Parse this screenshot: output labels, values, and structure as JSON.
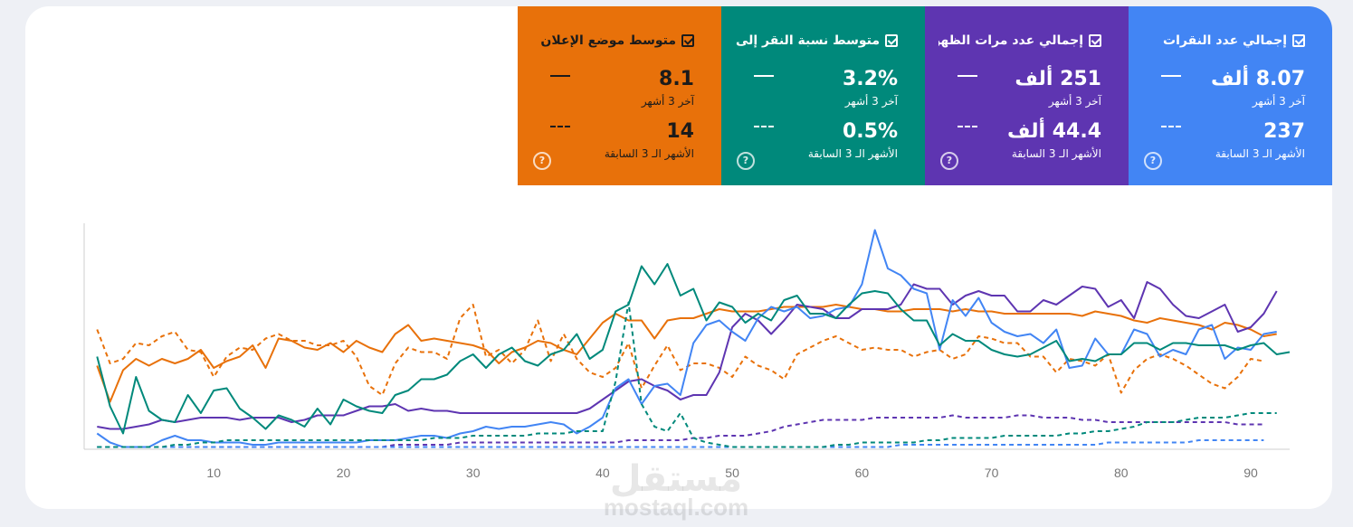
{
  "metrics": [
    {
      "label": "إجمالي عدد النقرات",
      "value": "8.07 ألف",
      "period": "آخر 3 أشهر",
      "prev_value": "237",
      "prev_period": "الأشهر الـ 3 السابقة",
      "color": "#4285f4",
      "dark_text": false
    },
    {
      "label": "إجمالي عدد مرات الظهو...",
      "value": "251 ألف",
      "period": "آخر 3 أشهر",
      "prev_value": "44.4 ألف",
      "prev_period": "الأشهر الـ 3 السابقة",
      "color": "#5e35b1",
      "dark_text": false
    },
    {
      "label": "متوسط نسبة النقر إلى الـ...",
      "value": "3.2%",
      "period": "آخر 3 أشهر",
      "prev_value": "0.5%",
      "prev_period": "الأشهر الـ 3 السابقة",
      "color": "#00897b",
      "dark_text": false
    },
    {
      "label": "متوسط موضع الإعلان",
      "value": "8.1",
      "period": "آخر 3 أشهر",
      "prev_value": "14",
      "prev_period": "الأشهر الـ 3 السابقة",
      "color": "#e8710a",
      "dark_text": true
    }
  ],
  "help_glyph": "?",
  "watermark": {
    "arabic": "مستقل",
    "latin": "mostaql.com"
  },
  "chart_data": {
    "type": "line",
    "xlim": [
      0,
      93
    ],
    "ylim": [
      0,
      100
    ],
    "xticks": [
      10,
      20,
      30,
      40,
      50,
      60,
      70,
      80,
      90
    ],
    "grid": false,
    "series": [
      {
        "color": "#e8710a",
        "style": "solid",
        "values": [
          37,
          21,
          35,
          40,
          37,
          40,
          38,
          40,
          44,
          36,
          39,
          41,
          46,
          36,
          49,
          48,
          45,
          44,
          47,
          43,
          48,
          45,
          43,
          51,
          55,
          48,
          49,
          48,
          47,
          46,
          44,
          38,
          43,
          45,
          48,
          47,
          44,
          42,
          49,
          56,
          60,
          57,
          57,
          49,
          57,
          58,
          58,
          60,
          62,
          61,
          61,
          61,
          62,
          63,
          63,
          63,
          63,
          64,
          63,
          62,
          62,
          61,
          61,
          62,
          62,
          62,
          61,
          62,
          61,
          61,
          60,
          60,
          60,
          60,
          60,
          60,
          59,
          61,
          60,
          59,
          57,
          56,
          58,
          57,
          56,
          55,
          53,
          56,
          55,
          53,
          50,
          51
        ]
      },
      {
        "color": "#e8710a",
        "style": "dashed",
        "values": [
          53,
          38,
          40,
          47,
          46,
          50,
          52,
          44,
          43,
          32,
          41,
          45,
          44,
          49,
          51,
          48,
          48,
          46,
          46,
          48,
          41,
          28,
          24,
          38,
          45,
          43,
          43,
          40,
          58,
          64,
          41,
          44,
          38,
          44,
          57,
          39,
          51,
          40,
          34,
          32,
          36,
          47,
          27,
          37,
          46,
          35,
          38,
          38,
          36,
          32,
          41,
          37,
          35,
          31,
          42,
          45,
          48,
          50,
          47,
          44,
          45,
          44,
          44,
          41,
          43,
          44,
          40,
          42,
          50,
          49,
          47,
          47,
          41,
          41,
          34,
          40,
          39,
          37,
          42,
          25,
          35,
          40,
          42,
          40,
          37,
          33,
          29,
          27,
          32,
          40,
          39
        ]
      },
      {
        "color": "#5e35b1",
        "style": "solid",
        "values": [
          10,
          9,
          9,
          10,
          11,
          13,
          12,
          13,
          14,
          14,
          14,
          13,
          14,
          14,
          14,
          12,
          13,
          15,
          15,
          15,
          17,
          19,
          19,
          20,
          17,
          18,
          17,
          17,
          16,
          16,
          16,
          16,
          16,
          16,
          16,
          16,
          16,
          16,
          18,
          22,
          26,
          30,
          31,
          28,
          26,
          22,
          24,
          24,
          34,
          54,
          60,
          57,
          51,
          57,
          64,
          63,
          62,
          58,
          58,
          62,
          62,
          62,
          64,
          73,
          71,
          71,
          64,
          68,
          70,
          68,
          68,
          61,
          61,
          66,
          64,
          68,
          72,
          71,
          63,
          66,
          58,
          74,
          71,
          64,
          59,
          58,
          61,
          64,
          52,
          54,
          60,
          70
        ]
      },
      {
        "color": "#5e35b1",
        "style": "dashed",
        "values": [
          1,
          1,
          1,
          1,
          1,
          1,
          1,
          1,
          1,
          1,
          1,
          1,
          1,
          1,
          1,
          1,
          1,
          1,
          1,
          1,
          1,
          1,
          1,
          2,
          2,
          2,
          2,
          2,
          3,
          3,
          3,
          3,
          3,
          3,
          3,
          3,
          3,
          3,
          3,
          3,
          3,
          4,
          4,
          4,
          4,
          4,
          5,
          5,
          6,
          6,
          6,
          7,
          8,
          10,
          11,
          12,
          13,
          13,
          13,
          13,
          14,
          14,
          14,
          14,
          14,
          14,
          15,
          14,
          14,
          14,
          14,
          15,
          15,
          14,
          14,
          14,
          13,
          13,
          12,
          12,
          12,
          12,
          12,
          12,
          12,
          12,
          12,
          12,
          11,
          11,
          11
        ]
      },
      {
        "color": "#4285f4",
        "style": "solid",
        "values": [
          7,
          3,
          1,
          1,
          1,
          4,
          6,
          4,
          4,
          3,
          3,
          3,
          2,
          2,
          3,
          3,
          3,
          3,
          3,
          3,
          3,
          4,
          4,
          4,
          5,
          6,
          6,
          5,
          7,
          8,
          10,
          9,
          10,
          10,
          11,
          12,
          11,
          7,
          10,
          14,
          27,
          31,
          20,
          28,
          29,
          24,
          47,
          55,
          57,
          52,
          48,
          58,
          63,
          61,
          63,
          58,
          59,
          62,
          63,
          73,
          97,
          80,
          77,
          71,
          69,
          44,
          66,
          59,
          67,
          56,
          52,
          50,
          51,
          47,
          53,
          36,
          37,
          49,
          42,
          42,
          53,
          51,
          41,
          44,
          42,
          53,
          55,
          40,
          45,
          44,
          51,
          52
        ]
      },
      {
        "color": "#4285f4",
        "style": "dashed",
        "values": [
          1,
          1,
          1,
          1,
          1,
          1,
          1,
          1,
          1,
          1,
          1,
          1,
          1,
          1,
          1,
          1,
          1,
          1,
          1,
          1,
          1,
          1,
          1,
          1,
          1,
          1,
          1,
          1,
          1,
          1,
          1,
          1,
          1,
          1,
          1,
          1,
          1,
          1,
          1,
          1,
          1,
          1,
          1,
          1,
          1,
          1,
          1,
          1,
          1,
          1,
          1,
          1,
          1,
          1,
          1,
          1,
          1,
          1,
          1,
          1,
          1,
          1,
          2,
          2,
          2,
          2,
          2,
          2,
          2,
          2,
          2,
          2,
          2,
          2,
          2,
          2,
          2,
          2,
          3,
          3,
          3,
          3,
          3,
          3,
          3,
          4,
          4,
          4,
          4,
          4,
          4
        ]
      },
      {
        "color": "#00897b",
        "style": "solid",
        "values": [
          41,
          19,
          7,
          32,
          17,
          13,
          12,
          24,
          16,
          26,
          27,
          18,
          14,
          9,
          15,
          13,
          10,
          18,
          11,
          22,
          19,
          17,
          16,
          24,
          26,
          31,
          31,
          33,
          39,
          42,
          36,
          42,
          45,
          39,
          37,
          42,
          44,
          51,
          40,
          44,
          61,
          64,
          81,
          73,
          82,
          68,
          71,
          57,
          65,
          63,
          56,
          60,
          57,
          66,
          68,
          60,
          60,
          58,
          64,
          69,
          70,
          69,
          62,
          57,
          57,
          46,
          51,
          48,
          48,
          44,
          42,
          41,
          42,
          45,
          48,
          39,
          40,
          39,
          42,
          42,
          47,
          47,
          44,
          47,
          47,
          46,
          46,
          46,
          44,
          46,
          47,
          42,
          43
        ]
      },
      {
        "color": "#00897b",
        "style": "dashed",
        "values": [
          1,
          1,
          1,
          1,
          1,
          1,
          2,
          2,
          3,
          3,
          4,
          4,
          4,
          4,
          4,
          4,
          4,
          4,
          4,
          4,
          4,
          4,
          4,
          4,
          4,
          4,
          5,
          5,
          5,
          6,
          6,
          6,
          6,
          6,
          7,
          7,
          7,
          8,
          8,
          8,
          30,
          65,
          20,
          10,
          8,
          16,
          5,
          3,
          2,
          1,
          1,
          1,
          1,
          1,
          1,
          1,
          1,
          2,
          2,
          3,
          3,
          3,
          3,
          3,
          4,
          4,
          5,
          5,
          5,
          5,
          6,
          6,
          6,
          6,
          6,
          7,
          7,
          8,
          8,
          9,
          10,
          12,
          12,
          12,
          13,
          14,
          14,
          14,
          15,
          16,
          16,
          16
        ]
      }
    ]
  }
}
